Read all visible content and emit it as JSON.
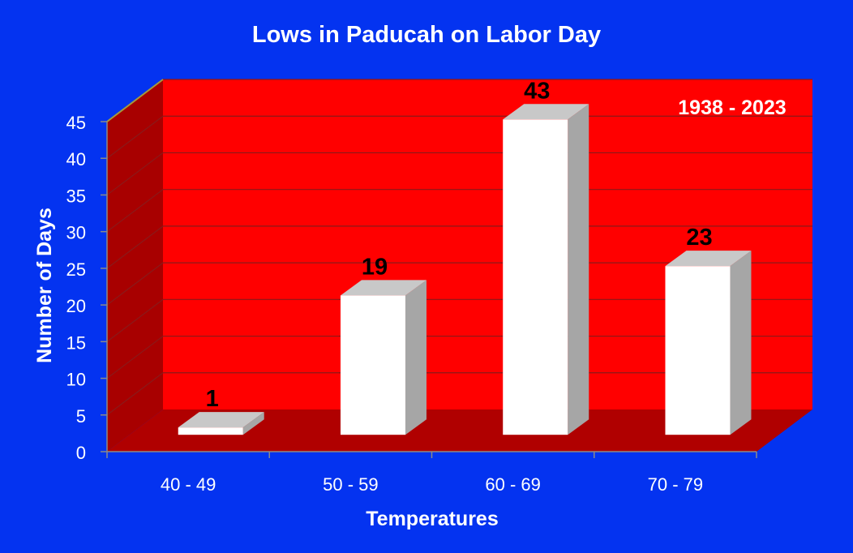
{
  "colors": {
    "background": "#0433f0",
    "back_wall": "#ff0000",
    "side_wall": "#a80000",
    "floor": "#b00000",
    "gridline": "#8a1a1a",
    "bar_front": "#ffffff",
    "bar_side": "#a6a6a6",
    "bar_top": "#c8c8c8",
    "axis_line": "#8a8a8a",
    "title_text": "#ffffff",
    "data_label_text": "#000000"
  },
  "chart_data": {
    "type": "bar",
    "title": "Lows in Paducah on Labor Day",
    "annotation": "1938 - 2023",
    "xlabel": "Temperatures",
    "ylabel": "Number of Days",
    "categories": [
      "40 - 49",
      "50 - 59",
      "60 - 69",
      "70 - 79"
    ],
    "values": [
      1,
      19,
      43,
      23
    ],
    "data_labels": [
      "1",
      "19",
      "43",
      "23"
    ],
    "ylim": [
      0,
      45
    ],
    "yticks": [
      "0",
      "5",
      "10",
      "15",
      "20",
      "25",
      "30",
      "35",
      "40",
      "45"
    ],
    "grid": true,
    "style": "3d",
    "legend": "none"
  }
}
